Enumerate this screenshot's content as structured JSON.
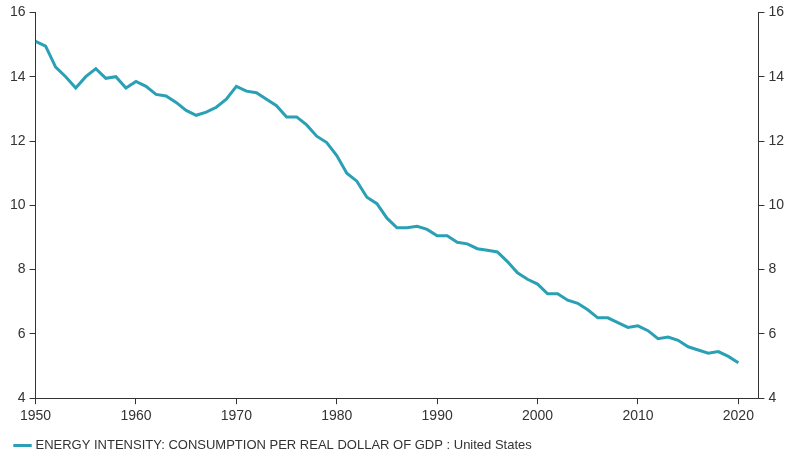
{
  "chart_data": {
    "type": "line",
    "x": [
      1950,
      1951,
      1952,
      1953,
      1954,
      1955,
      1956,
      1957,
      1958,
      1959,
      1960,
      1961,
      1962,
      1963,
      1964,
      1965,
      1966,
      1967,
      1968,
      1969,
      1970,
      1971,
      1972,
      1973,
      1974,
      1975,
      1976,
      1977,
      1978,
      1979,
      1980,
      1981,
      1982,
      1983,
      1984,
      1985,
      1986,
      1987,
      1988,
      1989,
      1990,
      1991,
      1992,
      1993,
      1994,
      1995,
      1996,
      1997,
      1998,
      1999,
      2000,
      2001,
      2002,
      2003,
      2004,
      2005,
      2006,
      2007,
      2008,
      2009,
      2010,
      2011,
      2012,
      2013,
      2014,
      2015,
      2016,
      2017,
      2018,
      2019,
      2020
    ],
    "series": [
      {
        "name": "ENERGY INTENSITY: CONSUMPTION PER REAL DOLLAR OF GDP : United States",
        "color": "#2aa0b4",
        "values": [
          15.1,
          14.95,
          14.3,
          14.0,
          13.65,
          14.0,
          14.25,
          13.95,
          14.0,
          13.65,
          13.85,
          13.7,
          13.45,
          13.4,
          13.2,
          12.95,
          12.8,
          12.9,
          13.05,
          13.3,
          13.7,
          13.55,
          13.5,
          13.3,
          13.1,
          12.75,
          12.75,
          12.5,
          12.15,
          11.95,
          11.55,
          11.0,
          10.75,
          10.25,
          10.05,
          9.6,
          9.3,
          9.3,
          9.35,
          9.25,
          9.05,
          9.05,
          8.85,
          8.8,
          8.65,
          8.6,
          8.55,
          8.25,
          7.9,
          7.7,
          7.55,
          7.25,
          7.25,
          7.05,
          6.95,
          6.75,
          6.5,
          6.5,
          6.35,
          6.2,
          6.25,
          6.1,
          5.85,
          5.9,
          5.8,
          5.6,
          5.5,
          5.4,
          5.45,
          5.3,
          5.1
        ]
      }
    ],
    "xlim": [
      1950,
      2022
    ],
    "xticks": [
      1950,
      1960,
      1970,
      1980,
      1990,
      2000,
      2010,
      2020
    ],
    "ylim": [
      4,
      16
    ],
    "yticks": [
      4,
      6,
      8,
      10,
      12,
      14,
      16
    ],
    "y2lim": [
      4,
      16
    ],
    "y2ticks": [
      4,
      6,
      8,
      10,
      12,
      14,
      16
    ],
    "grid": false,
    "legend": "bottom"
  }
}
